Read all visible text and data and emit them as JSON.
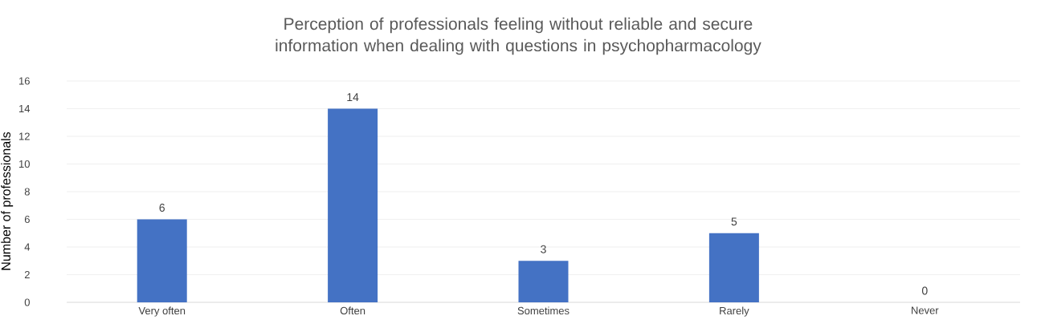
{
  "chart_data": {
    "type": "bar",
    "title": "Perception of professionals feeling without reliable and secure information when dealing with questions in psychopharmacology",
    "ylabel": "Number of professionals",
    "categories": [
      "Very often",
      "Often",
      "Sometimes",
      "Rarely",
      "Never"
    ],
    "values": [
      6,
      14,
      3,
      5,
      0
    ],
    "color": "#4472c4",
    "ylim": [
      0,
      16
    ],
    "yticks": [
      0,
      2,
      4,
      6,
      8,
      10,
      12,
      14,
      16
    ],
    "grid": "y",
    "data_labels": true
  }
}
